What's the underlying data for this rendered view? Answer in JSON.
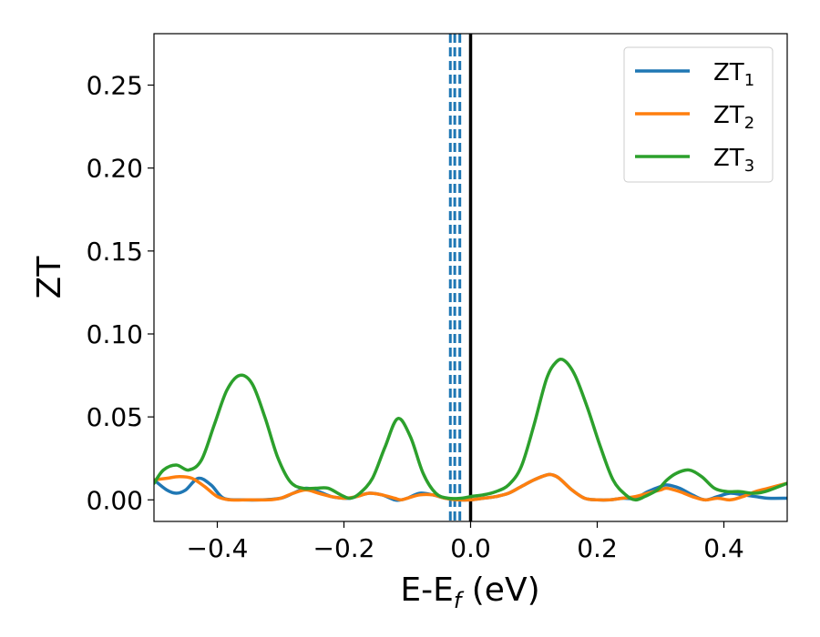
{
  "chart_data": {
    "type": "line",
    "xlabel_base": "E-E",
    "xlabel_sub": "f",
    "xlabel_unit": " (eV)",
    "ylabel": "ZT",
    "xlim": [
      -0.5,
      0.5
    ],
    "ylim": [
      -0.013,
      0.281
    ],
    "xticks": [
      -0.4,
      -0.2,
      0.0,
      0.2,
      0.4
    ],
    "xtick_labels": [
      "−0.4",
      "−0.2",
      "0.0",
      "0.2",
      "0.4"
    ],
    "yticks": [
      0.0,
      0.05,
      0.1,
      0.15,
      0.2,
      0.25
    ],
    "ytick_labels": [
      "0.00",
      "0.05",
      "0.10",
      "0.15",
      "0.20",
      "0.25"
    ],
    "legend_position": "top-right",
    "vlines": [
      {
        "x": 0.0,
        "style": "solid",
        "color": "#000000"
      },
      {
        "x": -0.032,
        "style": "dashed",
        "color": "#1f77b4"
      },
      {
        "x": -0.025,
        "style": "dashed",
        "color": "#1f77b4"
      },
      {
        "x": -0.017,
        "style": "dashed",
        "color": "#1f77b4"
      }
    ],
    "series": [
      {
        "name_base": "ZT",
        "name_sub": "1",
        "color": "#1f77b4",
        "x": [
          -0.5,
          -0.48,
          -0.465,
          -0.45,
          -0.43,
          -0.41,
          -0.39,
          -0.36,
          -0.33,
          -0.3,
          -0.28,
          -0.26,
          -0.24,
          -0.22,
          -0.2,
          -0.19,
          -0.18,
          -0.16,
          -0.14,
          -0.12,
          -0.11,
          -0.1,
          -0.08,
          -0.06,
          -0.04,
          -0.02,
          0.0,
          0.02,
          0.04,
          0.06,
          0.08,
          0.1,
          0.12,
          0.13,
          0.14,
          0.16,
          0.18,
          0.2,
          0.22,
          0.24,
          0.26,
          0.28,
          0.3,
          0.31,
          0.33,
          0.35,
          0.37,
          0.39,
          0.41,
          0.43,
          0.45,
          0.47,
          0.5
        ],
        "y": [
          0.012,
          0.006,
          0.004,
          0.006,
          0.013,
          0.009,
          0.001,
          0.0,
          0.0,
          0.001,
          0.004,
          0.007,
          0.005,
          0.002,
          0.001,
          0.001,
          0.002,
          0.004,
          0.003,
          0.0,
          0.0,
          0.001,
          0.004,
          0.003,
          0.001,
          0.0,
          0.0,
          0.001,
          0.002,
          0.004,
          0.008,
          0.012,
          0.015,
          0.015,
          0.013,
          0.006,
          0.001,
          0.0,
          0.0,
          0.001,
          0.001,
          0.005,
          0.008,
          0.009,
          0.007,
          0.003,
          0.0,
          0.002,
          0.004,
          0.003,
          0.002,
          0.001,
          0.001
        ]
      },
      {
        "name_base": "ZT",
        "name_sub": "2",
        "color": "#ff7f0e",
        "x": [
          -0.5,
          -0.48,
          -0.46,
          -0.44,
          -0.42,
          -0.4,
          -0.38,
          -0.35,
          -0.32,
          -0.3,
          -0.28,
          -0.26,
          -0.24,
          -0.22,
          -0.2,
          -0.18,
          -0.16,
          -0.14,
          -0.12,
          -0.11,
          -0.1,
          -0.08,
          -0.06,
          -0.04,
          -0.02,
          0.0,
          0.02,
          0.04,
          0.06,
          0.08,
          0.1,
          0.12,
          0.13,
          0.14,
          0.16,
          0.18,
          0.2,
          0.22,
          0.24,
          0.26,
          0.28,
          0.3,
          0.31,
          0.33,
          0.35,
          0.37,
          0.39,
          0.41,
          0.43,
          0.45,
          0.47,
          0.5
        ],
        "y": [
          0.012,
          0.013,
          0.014,
          0.013,
          0.008,
          0.002,
          0.0,
          0.0,
          0.0,
          0.001,
          0.004,
          0.006,
          0.004,
          0.002,
          0.001,
          0.002,
          0.004,
          0.003,
          0.001,
          0.0,
          0.001,
          0.003,
          0.003,
          0.001,
          0.0,
          0.0,
          0.001,
          0.002,
          0.004,
          0.008,
          0.012,
          0.015,
          0.015,
          0.013,
          0.006,
          0.001,
          0.0,
          0.0,
          0.001,
          0.002,
          0.004,
          0.006,
          0.007,
          0.005,
          0.002,
          0.0,
          0.001,
          0.0,
          0.002,
          0.005,
          0.007,
          0.01
        ]
      },
      {
        "name_base": "ZT",
        "name_sub": "3",
        "color": "#2ca02c",
        "x": [
          -0.5,
          -0.485,
          -0.465,
          -0.445,
          -0.425,
          -0.405,
          -0.385,
          -0.365,
          -0.345,
          -0.325,
          -0.305,
          -0.285,
          -0.265,
          -0.245,
          -0.225,
          -0.205,
          -0.19,
          -0.175,
          -0.155,
          -0.135,
          -0.115,
          -0.095,
          -0.075,
          -0.055,
          -0.035,
          -0.015,
          0.0,
          0.02,
          0.04,
          0.06,
          0.08,
          0.1,
          0.12,
          0.135,
          0.148,
          0.165,
          0.185,
          0.205,
          0.225,
          0.245,
          0.26,
          0.275,
          0.295,
          0.31,
          0.325,
          0.345,
          0.365,
          0.385,
          0.405,
          0.425,
          0.445,
          0.465,
          0.5
        ],
        "y": [
          0.01,
          0.018,
          0.021,
          0.018,
          0.024,
          0.045,
          0.066,
          0.075,
          0.07,
          0.05,
          0.026,
          0.011,
          0.007,
          0.007,
          0.007,
          0.003,
          0.001,
          0.004,
          0.013,
          0.032,
          0.049,
          0.038,
          0.016,
          0.004,
          0.001,
          0.001,
          0.002,
          0.003,
          0.005,
          0.009,
          0.02,
          0.045,
          0.073,
          0.083,
          0.084,
          0.075,
          0.055,
          0.032,
          0.012,
          0.003,
          0.0,
          0.002,
          0.006,
          0.012,
          0.016,
          0.018,
          0.014,
          0.007,
          0.005,
          0.005,
          0.004,
          0.005,
          0.01
        ]
      }
    ]
  }
}
